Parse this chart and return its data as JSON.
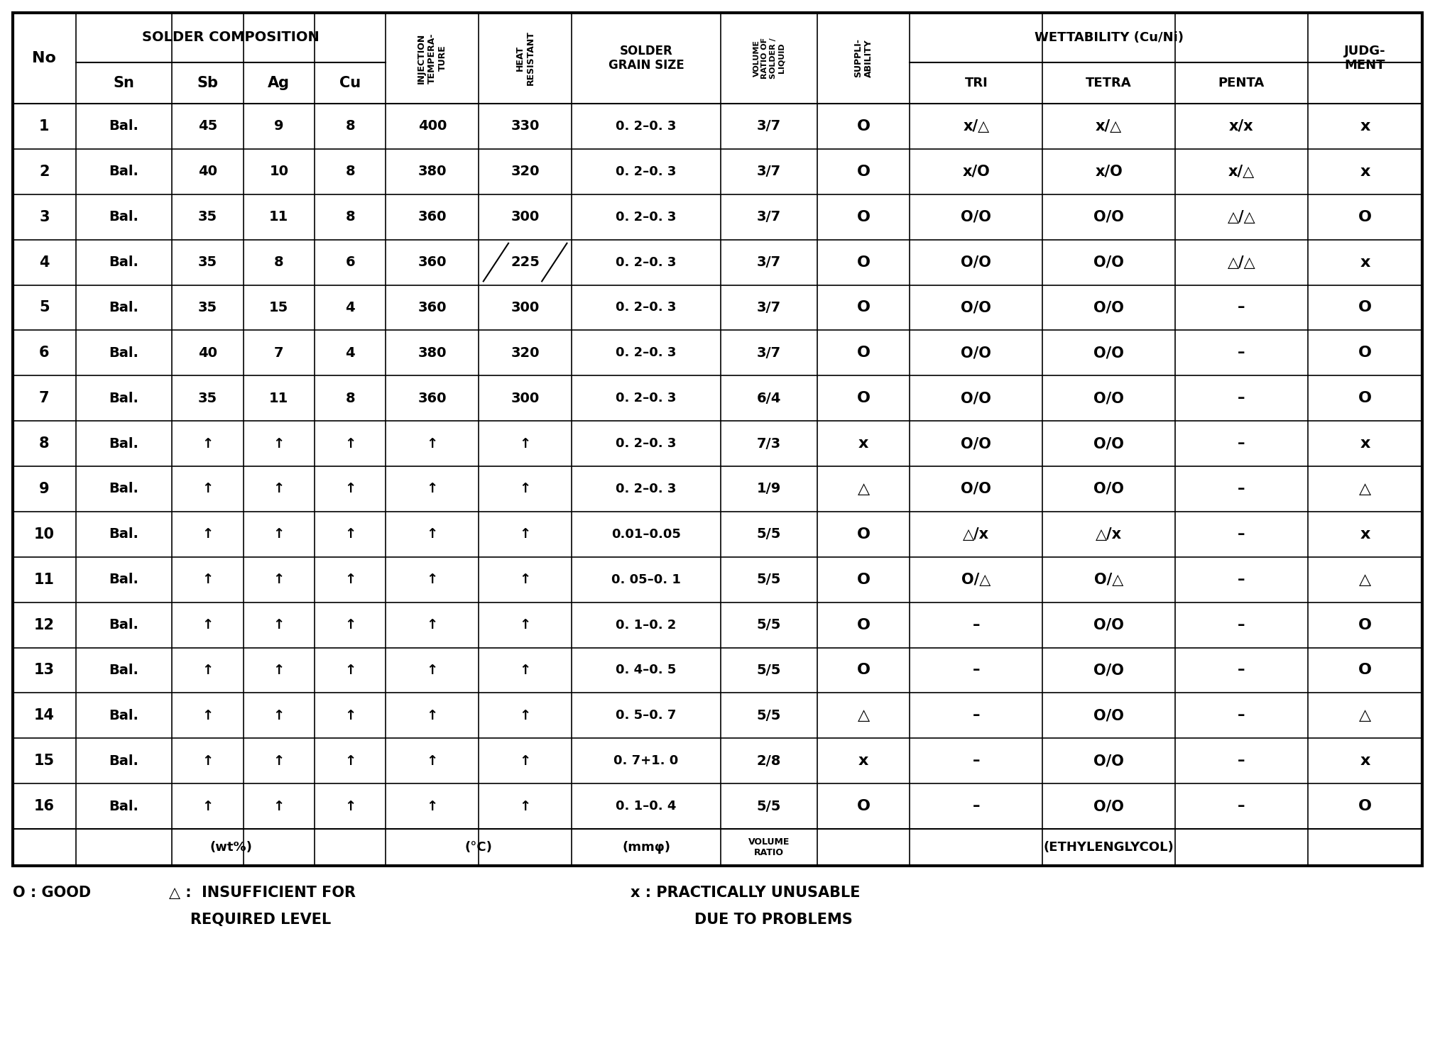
{
  "rows": [
    [
      "1",
      "Bal.",
      "45",
      "9",
      "8",
      "400",
      "330",
      "0. 2–0. 3",
      "3/7",
      "O",
      "x/△",
      "x/△",
      "x/x",
      "x"
    ],
    [
      "2",
      "Bal.",
      "40",
      "10",
      "8",
      "380",
      "320",
      "0. 2–0. 3",
      "3/7",
      "O",
      "x/O",
      "x/O",
      "x/△",
      "x"
    ],
    [
      "3",
      "Bal.",
      "35",
      "11",
      "8",
      "360",
      "300",
      "0. 2–0. 3",
      "3/7",
      "O",
      "O/O",
      "O/O",
      "△/△",
      "O"
    ],
    [
      "4",
      "Bal.",
      "35",
      "8",
      "6",
      "360",
      "225",
      "0. 2–0. 3",
      "3/7",
      "O",
      "O/O",
      "O/O",
      "△/△",
      "x"
    ],
    [
      "5",
      "Bal.",
      "35",
      "15",
      "4",
      "360",
      "300",
      "0. 2–0. 3",
      "3/7",
      "O",
      "O/O",
      "O/O",
      "–",
      "O"
    ],
    [
      "6",
      "Bal.",
      "40",
      "7",
      "4",
      "380",
      "320",
      "0. 2–0. 3",
      "3/7",
      "O",
      "O/O",
      "O/O",
      "–",
      "O"
    ],
    [
      "7",
      "Bal.",
      "35",
      "11",
      "8",
      "360",
      "300",
      "0. 2–0. 3",
      "6/4",
      "O",
      "O/O",
      "O/O",
      "–",
      "O"
    ],
    [
      "8",
      "Bal.",
      "↑",
      "↑",
      "↑",
      "↑",
      "↑",
      "0. 2–0. 3",
      "7/3",
      "x",
      "O/O",
      "O/O",
      "–",
      "x"
    ],
    [
      "9",
      "Bal.",
      "↑",
      "↑",
      "↑",
      "↑",
      "↑",
      "0. 2–0. 3",
      "1/9",
      "△",
      "O/O",
      "O/O",
      "–",
      "△"
    ],
    [
      "10",
      "Bal.",
      "↑",
      "↑",
      "↑",
      "↑",
      "↑",
      "0.01–0.05",
      "5/5",
      "O",
      "△/x",
      "△/x",
      "–",
      "x"
    ],
    [
      "11",
      "Bal.",
      "↑",
      "↑",
      "↑",
      "↑",
      "↑",
      "0. 05–0. 1",
      "5/5",
      "O",
      "O/△",
      "O/△",
      "–",
      "△"
    ],
    [
      "12",
      "Bal.",
      "↑",
      "↑",
      "↑",
      "↑",
      "↑",
      "0. 1–0. 2",
      "5/5",
      "O",
      "–",
      "O/O",
      "–",
      "O"
    ],
    [
      "13",
      "Bal.",
      "↑",
      "↑",
      "↑",
      "↑",
      "↑",
      "0. 4–0. 5",
      "5/5",
      "O",
      "–",
      "O/O",
      "–",
      "O"
    ],
    [
      "14",
      "Bal.",
      "↑",
      "↑",
      "↑",
      "↑",
      "↑",
      "0. 5–0. 7",
      "5/5",
      "△",
      "–",
      "O/O",
      "–",
      "△"
    ],
    [
      "15",
      "Bal.",
      "↑",
      "↑",
      "↑",
      "↑",
      "↑",
      "0. 7+1. 0",
      "2/8",
      "x",
      "–",
      "O/O",
      "–",
      "x"
    ],
    [
      "16",
      "Bal.",
      "↑",
      "↑",
      "↑",
      "↑",
      "↑",
      "0. 1–0. 4",
      "5/5",
      "O",
      "–",
      "O/O",
      "–",
      "O"
    ]
  ],
  "bg_color": "#ffffff",
  "text_color": "#000000"
}
